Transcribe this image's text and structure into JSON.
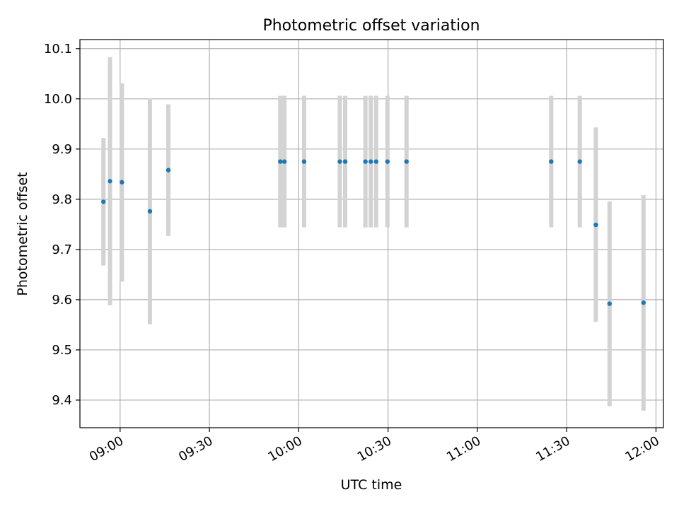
{
  "chart_data": {
    "type": "scatter",
    "title": "Photometric offset variation",
    "xlabel": "UTC time",
    "ylabel": "Photometric offset",
    "x_tick_labels": [
      "09:00",
      "09:30",
      "10:00",
      "10:30",
      "11:00",
      "11:30",
      "12:00"
    ],
    "x_tick_minutes": [
      540,
      570,
      600,
      630,
      660,
      690,
      720
    ],
    "y_tick_labels": [
      "9.4",
      "9.5",
      "9.6",
      "9.7",
      "9.8",
      "9.9",
      "10.0",
      "10.1"
    ],
    "y_tick_values": [
      9.4,
      9.5,
      9.6,
      9.7,
      9.8,
      9.9,
      10.0,
      10.1
    ],
    "xlim_minutes": [
      526.5,
      722.5
    ],
    "ylim": [
      9.345,
      10.118
    ],
    "grid": true,
    "marker_color": "#1f77b4",
    "errorbar_color": "#d3d3d3",
    "series": [
      {
        "name": "Photometric offset",
        "points": [
          {
            "t": 534.4,
            "y": 9.795,
            "lo": 9.668,
            "hi": 9.922
          },
          {
            "t": 536.6,
            "y": 9.836,
            "lo": 9.589,
            "hi": 10.083
          },
          {
            "t": 540.6,
            "y": 9.834,
            "lo": 9.636,
            "hi": 10.031
          },
          {
            "t": 550.0,
            "y": 9.776,
            "lo": 9.551,
            "hi": 10.001
          },
          {
            "t": 556.2,
            "y": 9.858,
            "lo": 9.727,
            "hi": 9.989
          },
          {
            "t": 593.8,
            "y": 9.875,
            "lo": 9.744,
            "hi": 10.006
          },
          {
            "t": 595.2,
            "y": 9.875,
            "lo": 9.744,
            "hi": 10.006
          },
          {
            "t": 601.8,
            "y": 9.875,
            "lo": 9.744,
            "hi": 10.006
          },
          {
            "t": 613.8,
            "y": 9.875,
            "lo": 9.744,
            "hi": 10.006
          },
          {
            "t": 615.6,
            "y": 9.875,
            "lo": 9.744,
            "hi": 10.006
          },
          {
            "t": 622.4,
            "y": 9.875,
            "lo": 9.744,
            "hi": 10.006
          },
          {
            "t": 624.2,
            "y": 9.875,
            "lo": 9.744,
            "hi": 10.006
          },
          {
            "t": 626.0,
            "y": 9.875,
            "lo": 9.744,
            "hi": 10.006
          },
          {
            "t": 629.8,
            "y": 9.875,
            "lo": 9.744,
            "hi": 10.006
          },
          {
            "t": 636.2,
            "y": 9.875,
            "lo": 9.744,
            "hi": 10.006
          },
          {
            "t": 684.8,
            "y": 9.875,
            "lo": 9.744,
            "hi": 10.006
          },
          {
            "t": 694.4,
            "y": 9.875,
            "lo": 9.744,
            "hi": 10.006
          },
          {
            "t": 699.8,
            "y": 9.749,
            "lo": 9.556,
            "hi": 9.943
          },
          {
            "t": 704.4,
            "y": 9.592,
            "lo": 9.388,
            "hi": 9.796
          },
          {
            "t": 715.8,
            "y": 9.594,
            "lo": 9.379,
            "hi": 9.808
          }
        ]
      }
    ]
  }
}
